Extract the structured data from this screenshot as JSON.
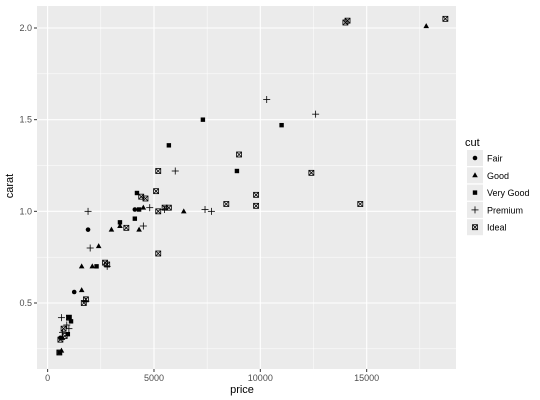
{
  "chart_data": {
    "type": "scatter",
    "title": "",
    "xlabel": "price",
    "ylabel": "carat",
    "xlim": [
      -500,
      19200
    ],
    "ylim": [
      0.14,
      2.12
    ],
    "x_ticks": [
      0,
      5000,
      10000,
      15000
    ],
    "x_tick_labels": [
      "0",
      "5000",
      "10000",
      "15000"
    ],
    "y_ticks": [
      0.5,
      1.0,
      1.5,
      2.0
    ],
    "y_tick_labels": [
      "0.5",
      "1.0",
      "1.5",
      "2.0"
    ],
    "grid": true,
    "legend_title": "cut",
    "legend_position": "right",
    "colors": {
      "panel": "#ebebeb",
      "grid": "#ffffff",
      "point": "#000000"
    },
    "series": [
      {
        "name": "Fair",
        "shape": "circle",
        "points": [
          [
            1900,
            0.9
          ],
          [
            1250,
            0.56
          ],
          [
            600,
            0.31
          ],
          [
            4100,
            1.01
          ]
        ]
      },
      {
        "name": "Good",
        "shape": "triangle",
        "points": [
          [
            17800,
            2.01
          ],
          [
            1600,
            0.7
          ],
          [
            1600,
            0.57
          ],
          [
            2400,
            0.81
          ],
          [
            3000,
            0.9
          ],
          [
            3400,
            0.92
          ],
          [
            4300,
            0.9
          ],
          [
            6400,
            1.0
          ],
          [
            4500,
            1.02
          ],
          [
            700,
            0.31
          ],
          [
            650,
            0.24
          ],
          [
            2100,
            0.7
          ]
        ]
      },
      {
        "name": "Very Good",
        "shape": "square",
        "points": [
          [
            7300,
            1.5
          ],
          [
            11000,
            1.47
          ],
          [
            5700,
            1.36
          ],
          [
            8900,
            1.22
          ],
          [
            4200,
            1.1
          ],
          [
            4100,
            0.96
          ],
          [
            3400,
            0.94
          ],
          [
            4300,
            1.01
          ],
          [
            2300,
            0.7
          ],
          [
            550,
            0.23
          ],
          [
            1100,
            0.4
          ],
          [
            950,
            0.33
          ],
          [
            1000,
            0.42
          ]
        ]
      },
      {
        "name": "Premium",
        "shape": "plus",
        "points": [
          [
            10300,
            1.61
          ],
          [
            12600,
            1.53
          ],
          [
            6000,
            1.22
          ],
          [
            7400,
            1.01
          ],
          [
            7700,
            1.0
          ],
          [
            5500,
            1.01
          ],
          [
            4800,
            1.02
          ],
          [
            1900,
            1.0
          ],
          [
            2000,
            0.8
          ],
          [
            2800,
            0.7
          ],
          [
            1800,
            0.51
          ],
          [
            900,
            0.38
          ],
          [
            700,
            0.34
          ],
          [
            1000,
            0.36
          ],
          [
            650,
            0.42
          ],
          [
            4500,
            0.92
          ]
        ]
      },
      {
        "name": "Ideal",
        "shape": "box-x",
        "points": [
          [
            14100,
            2.04
          ],
          [
            18700,
            2.05
          ],
          [
            14000,
            2.03
          ],
          [
            9000,
            1.31
          ],
          [
            12400,
            1.21
          ],
          [
            14700,
            1.04
          ],
          [
            9800,
            1.09
          ],
          [
            9800,
            1.03
          ],
          [
            8400,
            1.04
          ],
          [
            5100,
            1.11
          ],
          [
            5200,
            1.22
          ],
          [
            4600,
            1.07
          ],
          [
            4400,
            1.08
          ],
          [
            5500,
            1.02
          ],
          [
            5700,
            1.02
          ],
          [
            5200,
            1.0
          ],
          [
            3700,
            0.91
          ],
          [
            5200,
            0.77
          ],
          [
            2700,
            0.72
          ],
          [
            2800,
            0.71
          ],
          [
            1800,
            0.52
          ],
          [
            1700,
            0.5
          ],
          [
            1000,
            0.42
          ],
          [
            800,
            0.32
          ],
          [
            600,
            0.3
          ],
          [
            750,
            0.36
          ],
          [
            550,
            0.23
          ]
        ]
      }
    ]
  }
}
